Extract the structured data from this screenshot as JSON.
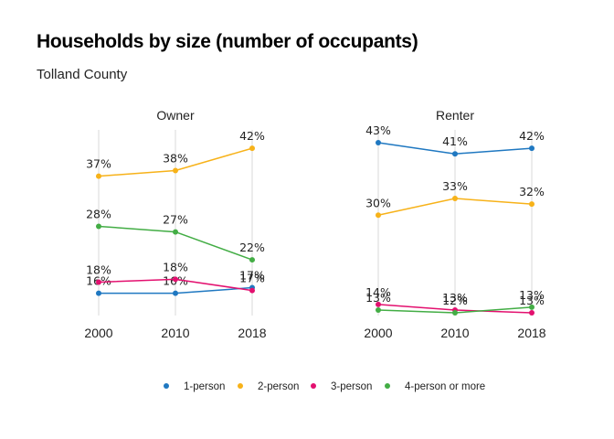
{
  "chart_data": {
    "type": "line",
    "title": "Households by size (number of occupants)",
    "subtitle": "Tolland County",
    "x": [
      "2000",
      "2010",
      "2018"
    ],
    "legend_position": "bottom",
    "grid": "vertical",
    "colors": {
      "1-person": "#1f78c1",
      "2-person": "#f7b219",
      "3-person": "#e3106f",
      "4-person or more": "#43ad45"
    },
    "facets": [
      {
        "name": "Owner",
        "series": [
          {
            "name": "1-person",
            "values": [
              16,
              16,
              17
            ],
            "labels": [
              "16%",
              "16%",
              "17%"
            ]
          },
          {
            "name": "2-person",
            "values": [
              37,
              38,
              42
            ],
            "labels": [
              "37%",
              "38%",
              "42%"
            ]
          },
          {
            "name": "3-person",
            "values": [
              18,
              18.5,
              16.5
            ],
            "labels": [
              "18%",
              "18%",
              "17%"
            ]
          },
          {
            "name": "4-person or more",
            "values": [
              28,
              27,
              22
            ],
            "labels": [
              "28%",
              "27%",
              "22%"
            ]
          }
        ]
      },
      {
        "name": "Renter",
        "series": [
          {
            "name": "1-person",
            "values": [
              43,
              41,
              42
            ],
            "labels": [
              "43%",
              "41%",
              "42%"
            ]
          },
          {
            "name": "2-person",
            "values": [
              30,
              33,
              32
            ],
            "labels": [
              "30%",
              "33%",
              "32%"
            ]
          },
          {
            "name": "3-person",
            "values": [
              14,
              13,
              12.5
            ],
            "labels": [
              "14%",
              "13%",
              "13%"
            ]
          },
          {
            "name": "4-person or more",
            "values": [
              13,
              12.5,
              13.5
            ],
            "labels": [
              "13%",
              "12%",
              "13%"
            ]
          }
        ]
      }
    ]
  }
}
